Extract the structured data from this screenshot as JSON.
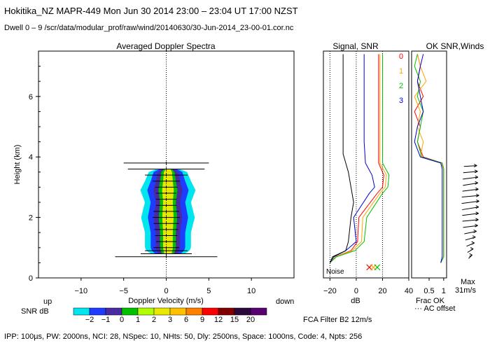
{
  "header": {
    "title": "Hokitika_NZ   MAPR-449   Mon Jun 30 2014 23:00 – 23:04 UT 17:00 NZST",
    "subtitle": "Dwell   0  –   9    /scr/data/modular_prof/raw/wind/20140630/30-Jun-2014_23-00-01.cor.nc"
  },
  "footer": {
    "params": "IPP: 100µs,  PW: 2000ns,  NCI:  28,  NSpec: 10, NHts: 50,  Dly: 2500ns,  Space: 1000ns,  Code: 4,  Npts: 256",
    "fca": "FCA Filter B2 12m/s"
  },
  "colors": {
    "snr_scale": [
      "#00e5ee",
      "#1e3cff",
      "#4a2aa0",
      "#00c000",
      "#b0ff00",
      "#e8e800",
      "#ffc000",
      "#ff7f00",
      "#ff0000",
      "#800000",
      "#2a0a3a",
      "#5a0070"
    ],
    "series": [
      "#ff0000",
      "#ffa500",
      "#00c000",
      "#0000cc"
    ]
  },
  "chart_data": [
    {
      "type": "heatmap",
      "title": "Averaged Doppler Spectra",
      "xlabel": "Doppler Velocity (m/s)",
      "ylabel": "Height (km)",
      "x_ticks": [
        "−10",
        "−5",
        "0",
        "5",
        "10"
      ],
      "y_ticks": [
        "0",
        "2",
        "4",
        "6"
      ],
      "xlim": [
        -15,
        15
      ],
      "ylim": [
        0,
        7.5
      ],
      "left_note": "up",
      "right_note": "down",
      "colorbar_label": "SNR dB",
      "colorbar_ticks": [
        "−2",
        "−1",
        "0",
        "1",
        "2",
        "3",
        "6",
        "9",
        "12",
        "15",
        "20"
      ],
      "heights": [
        0.7,
        0.8,
        0.9,
        1.0,
        1.2,
        1.4,
        1.6,
        1.8,
        2.0,
        2.2,
        2.4,
        2.6,
        2.8,
        3.0,
        3.2,
        3.4,
        3.6,
        3.8
      ],
      "spread_m_s": [
        6.0,
        3.0,
        2.5,
        1.5,
        1.2,
        1.3,
        1.4,
        1.5,
        1.6,
        1.5,
        1.2,
        1.2,
        1.2,
        1.3,
        1.6,
        2.5,
        4.5,
        5.0
      ],
      "envelope": [
        [
          0.8,
          2.2
        ],
        [
          0.9,
          2.8
        ],
        [
          1.0,
          3.0
        ],
        [
          1.5,
          3.0
        ],
        [
          2.0,
          3.5
        ],
        [
          2.5,
          3.0
        ],
        [
          2.9,
          3.6
        ],
        [
          3.2,
          3.0
        ],
        [
          3.5,
          2.5
        ],
        [
          3.6,
          1.5
        ]
      ]
    },
    {
      "type": "line",
      "title": "Signal, SNR",
      "xlabel": "dB",
      "x_ticks": [
        "−20",
        "0",
        "20",
        "40"
      ],
      "xlim": [
        -25,
        40
      ],
      "ylim": [
        0,
        7.5
      ],
      "noise_label": "Noise",
      "series": [
        {
          "name": "0",
          "x": [
            -20,
            -16,
            -4,
            1,
            2,
            16,
            20,
            21,
            17,
            17,
            17,
            17,
            17,
            17,
            17,
            17
          ],
          "y": [
            0.5,
            0.7,
            0.9,
            1.2,
            2.0,
            2.8,
            3.0,
            3.4,
            3.8,
            4.5,
            5.0,
            5.5,
            6.0,
            6.5,
            7.0,
            7.4
          ]
        },
        {
          "name": "1",
          "x": [
            -20,
            -16,
            -3,
            4,
            5,
            18,
            22,
            23,
            18,
            18,
            18,
            18,
            18,
            18,
            18,
            18
          ],
          "y": [
            0.5,
            0.7,
            0.9,
            1.2,
            2.0,
            2.8,
            3.0,
            3.4,
            3.8,
            4.5,
            5.0,
            5.5,
            6.0,
            6.5,
            7.0,
            7.4
          ]
        },
        {
          "name": "2",
          "x": [
            -20,
            -15,
            -1,
            6,
            8,
            20,
            24,
            25,
            20,
            20,
            20,
            20,
            20,
            20,
            20,
            20
          ],
          "y": [
            0.5,
            0.7,
            0.9,
            1.2,
            2.0,
            2.8,
            3.0,
            3.4,
            3.8,
            4.5,
            5.0,
            5.5,
            6.0,
            6.5,
            7.0,
            7.4
          ]
        },
        {
          "name": "3",
          "x": [
            -20,
            -17,
            -8,
            0,
            -2,
            10,
            14,
            12,
            7,
            6,
            6,
            6,
            6,
            6,
            6,
            6
          ],
          "y": [
            0.5,
            0.7,
            0.9,
            1.2,
            2.0,
            2.8,
            3.0,
            3.4,
            3.8,
            4.5,
            5.0,
            5.5,
            6.0,
            6.5,
            7.0,
            7.4
          ]
        },
        {
          "name": "Noise",
          "x": [
            -20,
            -18,
            -8,
            -6,
            -4,
            -2,
            -4,
            -6,
            -8,
            -10,
            -10,
            -10,
            -10,
            -10,
            -10,
            -10
          ],
          "y": [
            0.5,
            0.7,
            0.9,
            1.2,
            2.0,
            2.5,
            3.0,
            3.5,
            3.8,
            4.1,
            4.5,
            5.0,
            5.5,
            6.0,
            6.5,
            7.4
          ]
        }
      ],
      "markers_x": [
        10,
        13,
        16
      ]
    },
    {
      "type": "line",
      "title": "OK SNR,Winds",
      "x_ticks": [
        "0.5",
        "1"
      ],
      "xlabel": "Frac OK",
      "legend": [
        "0",
        "1",
        "2",
        "3"
      ],
      "note": "··· AC offset",
      "max_label": "Max",
      "max_value": "31m/s",
      "wind_heights": [
        0.7,
        0.9,
        1.1,
        1.3,
        1.5,
        1.7,
        1.9,
        2.1,
        2.3,
        2.5,
        2.7,
        2.9,
        3.1,
        3.3,
        3.5,
        3.7
      ],
      "wind_dir_deg": [
        200,
        210,
        220,
        230,
        240,
        250,
        255,
        250,
        245,
        250,
        255,
        250,
        245,
        250,
        255,
        260
      ],
      "wind_speed_m_s": [
        12,
        14,
        16,
        18,
        20,
        24,
        26,
        28,
        30,
        31,
        29,
        27,
        26,
        25,
        22,
        18
      ]
    }
  ]
}
